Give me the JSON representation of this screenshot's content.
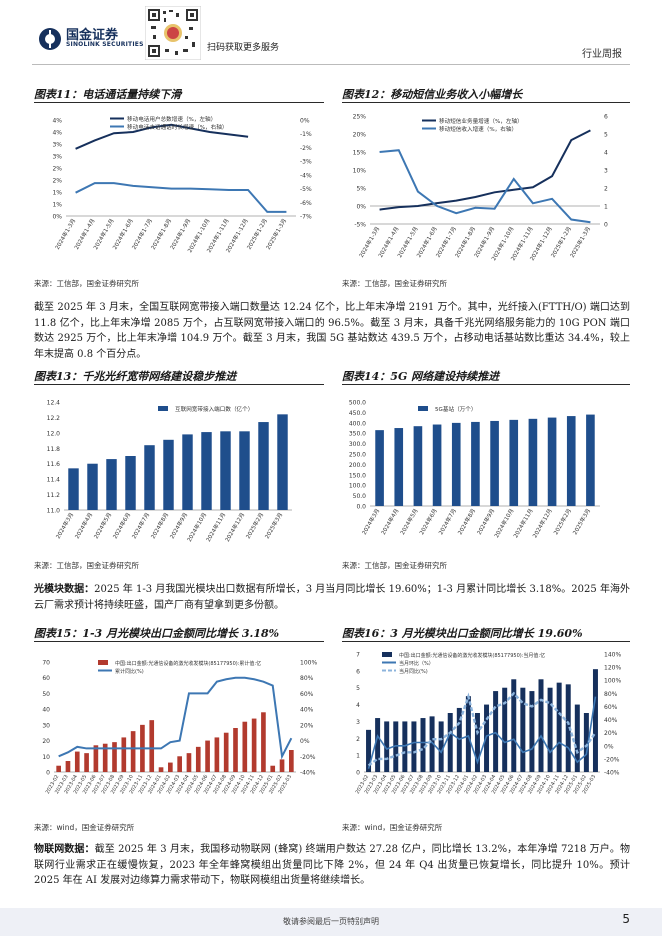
{
  "header": {
    "brand": "国金证券",
    "brand_en": "SINOLINK SECURITIES",
    "qr_caption": "扫码获取更多服务",
    "report_type": "行业周报"
  },
  "figures": [
    {
      "title": "图表11：电话通话量持续下滑",
      "source": "来源：工信部，国金证券研究所"
    },
    {
      "title": "图表12：移动短信业务收入小幅增长",
      "source": "来源：工信部，国金证券研究所"
    },
    {
      "title": "图表13：千兆光纤宽带网络建设稳步推进",
      "source": "来源：工信部，国金证券研究所"
    },
    {
      "title": "图表14：5G 网络建设持续推进",
      "source": "来源：工信部，国金证券研究所"
    },
    {
      "title": "图表15：1-3 月光模块出口金额同比增长 3.18%",
      "source": "来源：wind，国金证券研究所"
    },
    {
      "title": "图表16：3 月光模块出口金额同比增长 19.60%",
      "source": "来源：wind，国金证券研究所"
    }
  ],
  "paragraphs": {
    "p1": "截至 2025 年 3 月末，全国互联网宽带接入端口数量达 12.24 亿个，比上年末净增 2191 万个。其中，光纤接入(FTTH/O) 端口达到 11.8 亿个，比上年末净增 2085 万个，占互联网宽带接入端口的 96.5%。截至 3 月末，具备千兆光网络服务能力的 10G PON 端口数达 2925 万个，比上年末净增 104.9 万个。截至 3 月末，我国 5G 基站数达 439.5 万个，占移动电话基站数比重达 34.4%，较上年末提高 0.8 个百分点。",
    "p2_lead": "光模块数据：",
    "p2": "2025 年 1-3 月我国光模块出口数据有所增长，3 月当月同比增长 19.60%；1-3 月累计同比增长 3.18%。2025 年海外云厂需求预计将持续旺盛，国产厂商有望拿到更多份额。",
    "p3_lead": "物联网数据：",
    "p3": "截至 2025 年 3 月末，我国移动物联网 (蜂窝) 终端用户数达 27.28 亿户，同比增长 13.2%，本年净增 7218 万户。物联网行业需求正在缓慢恢复，2023 年全年蜂窝模组出货量同比下降 2%，但 24 年 Q4 出货量已恢复增长，同比提升 10%。预计 2025 年在 AI 发展对边缘算力需求带动下，物联网模组出货量将继续增长。"
  },
  "footer": {
    "disclaimer": "敬请参阅最后一页特别声明",
    "page": "5"
  },
  "colors": {
    "dark_navy": "#16305c",
    "mid_blue": "#3d77b3",
    "light_blue": "#8db4dc",
    "chart_blue": "#1f4e8c"
  },
  "chart_data": [
    {
      "type": "line",
      "categories": [
        "2024年1-3月",
        "2024年1-4月",
        "2024年1-5月",
        "2024年1-6月",
        "2024年1-7月",
        "2024年1-8月",
        "2024年1-9月",
        "2024年1-10月",
        "2024年1-11月",
        "2024年1-12月",
        "2025年1-2月",
        "2025年1-3月"
      ],
      "series": [
        {
          "name": "移动电话用户总数增速（%，左轴）",
          "axis": "left",
          "values": [
            2.8,
            3.15,
            3.45,
            3.5,
            3.7,
            3.8,
            3.65,
            3.5,
            3.4,
            3.3,
            null,
            null
          ]
        },
        {
          "name": "移动电话去话通话时长增速（%，右轴）",
          "axis": "right",
          "values": [
            -5.3,
            -4.6,
            -4.6,
            -4.8,
            -4.9,
            -5.0,
            -5.0,
            -5.05,
            -5.1,
            -5.1,
            -6.7,
            -6.7
          ]
        }
      ],
      "ylim": [
        0,
        4
      ],
      "yticks": [
        "0%",
        "1%",
        "1%",
        "2%",
        "2%",
        "3%",
        "3%",
        "4%",
        "4%"
      ],
      "ylim_right": [
        -7,
        0
      ],
      "yticks_right": [
        "0%",
        "-1%",
        "-2%",
        "-3%",
        "-4%",
        "-5%",
        "-6%",
        "-7%"
      ],
      "legend": "top-left"
    },
    {
      "type": "line",
      "categories": [
        "2024年1-3月",
        "2024年1-4月",
        "2024年1-5月",
        "2024年1-6月",
        "2024年1-7月",
        "2024年1-8月",
        "2024年1-9月",
        "2024年1-10月",
        "2024年1-11月",
        "2024年1-12月",
        "2025年1-2月",
        "2025年1-3月"
      ],
      "series": [
        {
          "name": "移动短信业务量增速（%，左轴）",
          "axis": "left",
          "values": [
            -1.0,
            -0.3,
            0.0,
            0.8,
            1.5,
            2.5,
            3.8,
            4.5,
            5.2,
            8.3,
            18.3,
            21.0
          ]
        },
        {
          "name": "移动短信收入增速（%，右轴）",
          "axis": "right",
          "values": [
            4.0,
            4.1,
            1.8,
            1.0,
            0.6,
            0.9,
            0.85,
            2.5,
            1.15,
            1.4,
            0.25,
            0.1
          ]
        }
      ],
      "ylim": [
        -5,
        25
      ],
      "yticks": [
        "-5%",
        "0%",
        "5%",
        "10%",
        "15%",
        "20%",
        "25%"
      ],
      "ylim_right": [
        0,
        6
      ],
      "yticks_right": [
        "0",
        "1",
        "2",
        "3",
        "4",
        "5",
        "6"
      ],
      "legend": "top-left"
    },
    {
      "type": "bar",
      "categories": [
        "2024年3月",
        "2024年4月",
        "2024年5月",
        "2024年6月",
        "2024年7月",
        "2024年8月",
        "2024年9月",
        "2024年10月",
        "2024年11月",
        "2024年12月",
        "2025年2月",
        "2025年3月"
      ],
      "series": [
        {
          "name": "互联网宽带接入端口数（亿个）",
          "values": [
            11.54,
            11.6,
            11.66,
            11.7,
            11.84,
            11.91,
            11.98,
            12.01,
            12.02,
            12.02,
            12.14,
            12.24
          ]
        }
      ],
      "ylim": [
        11.0,
        12.4
      ],
      "yticks": [
        "11.0",
        "11.2",
        "11.4",
        "11.6",
        "11.8",
        "12.0",
        "12.2",
        "12.4"
      ],
      "legend": "top-left"
    },
    {
      "type": "bar",
      "categories": [
        "2024年3月",
        "2024年4月",
        "2024年5月",
        "2024年6月",
        "2024年7月",
        "2024年8月",
        "2024年9月",
        "2024年10月",
        "2024年11月",
        "2024年12月",
        "2025年2月",
        "2025年3月"
      ],
      "series": [
        {
          "name": "5G基站（万个）",
          "values": [
            364.7,
            374.8,
            383.7,
            391.7,
            399.6,
            404.2,
            408.9,
            414.1,
            419.1,
            425.1,
            432.3,
            439.5
          ]
        }
      ],
      "ylim": [
        0,
        500
      ],
      "yticks": [
        "0.0",
        "50.0",
        "100.0",
        "150.0",
        "200.0",
        "250.0",
        "300.0",
        "350.0",
        "400.0",
        "450.0",
        "500.0"
      ],
      "legend": "top-left"
    },
    {
      "type": "bar",
      "categories": [
        "2023-02",
        "2023-03",
        "2023-04",
        "2023-05",
        "2023-06",
        "2023-07",
        "2023-08",
        "2023-09",
        "2023-10",
        "2023-11",
        "2023-12",
        "2024-01",
        "2024-02",
        "2024-03",
        "2024-04",
        "2024-05",
        "2024-06",
        "2024-07",
        "2024-08",
        "2024-09",
        "2024-10",
        "2024-11",
        "2024-12",
        "2025-01",
        "2025-02",
        "2025-03"
      ],
      "series": [
        {
          "name": "中国:出口金额:光通信设备的激光收发模块(85177950):累计值:亿",
          "type": "bar",
          "axis": "left",
          "values": [
            4,
            7,
            13,
            12,
            17,
            18,
            19,
            22,
            26,
            30,
            33,
            3,
            6,
            10,
            12,
            16,
            20,
            22,
            25,
            28,
            32,
            34,
            38,
            4,
            8,
            14
          ]
        },
        {
          "name": "累计同比(%)",
          "type": "line",
          "axis": "right",
          "values": [
            -20,
            -15,
            -8,
            -10,
            -10,
            -10,
            -10,
            -10,
            -10,
            -10,
            -10,
            -10,
            -2,
            0,
            60,
            60,
            60,
            75,
            78,
            80,
            80,
            78,
            75,
            70,
            -20,
            3
          ]
        }
      ],
      "ylim": [
        0,
        70
      ],
      "yticks": [
        "0",
        "10",
        "20",
        "30",
        "40",
        "50",
        "60",
        "70"
      ],
      "ylim_right": [
        -40,
        100
      ],
      "yticks_right": [
        "-40%",
        "-20%",
        "0%",
        "20%",
        "40%",
        "60%",
        "80%",
        "100%"
      ],
      "legend": "top-left"
    },
    {
      "type": "bar",
      "categories": [
        "2023-02",
        "2023-03",
        "2023-04",
        "2023-05",
        "2023-06",
        "2023-07",
        "2023-08",
        "2023-09",
        "2023-10",
        "2023-11",
        "2023-12",
        "2024-01",
        "2024-02",
        "2024-03",
        "2024-04",
        "2024-05",
        "2024-06",
        "2024-07",
        "2024-08",
        "2024-09",
        "2024-10",
        "2024-11",
        "2024-12",
        "2025-01",
        "2025-02",
        "2025-03"
      ],
      "series": [
        {
          "name": "中国:出口金额:光通信设备的激光收发模块(85177950):当月值:亿",
          "type": "bar",
          "axis": "left",
          "values": [
            2.5,
            3.2,
            3.0,
            3.0,
            3.0,
            3.0,
            3.2,
            3.3,
            3.0,
            3.5,
            3.8,
            4.5,
            3.5,
            4.0,
            4.8,
            5.0,
            5.5,
            5.0,
            4.8,
            5.5,
            5.0,
            5.3,
            5.2,
            4.0,
            3.5,
            6.1
          ]
        },
        {
          "name": "当月环比（%）",
          "type": "line",
          "axis": "right",
          "values": [
            -35,
            15,
            -5,
            0,
            0,
            5,
            5,
            5,
            -10,
            20,
            10,
            15,
            -25,
            15,
            20,
            5,
            10,
            -10,
            -5,
            15,
            -10,
            5,
            -3,
            -25,
            -13,
            75
          ]
        },
        {
          "name": "当月同比(%)",
          "type": "line",
          "axis": "right",
          "values": [
            -30,
            -20,
            -20,
            -15,
            -10,
            -10,
            -5,
            10,
            10,
            20,
            35,
            75,
            20,
            40,
            60,
            65,
            80,
            65,
            60,
            70,
            65,
            50,
            35,
            -10,
            0,
            20
          ]
        }
      ],
      "ylim": [
        0,
        7
      ],
      "yticks": [
        "0",
        "1",
        "2",
        "3",
        "4",
        "5",
        "6",
        "7"
      ],
      "ylim_right": [
        -40,
        140
      ],
      "yticks_right": [
        "-40%",
        "-20%",
        "0%",
        "20%",
        "40%",
        "60%",
        "80%",
        "100%",
        "120%",
        "140%"
      ],
      "legend": "top-left"
    }
  ]
}
